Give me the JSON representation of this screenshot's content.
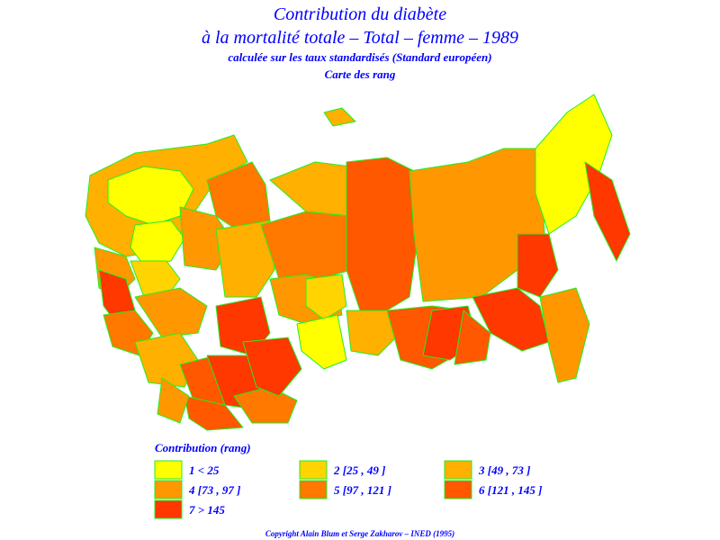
{
  "header": {
    "title": "Contribution du diabète",
    "subtitle": "à la mortalité totale – Total – femme – 1989",
    "note": "calculée sur les taux standardisés (Standard européen)",
    "map_name": "Carte des rang"
  },
  "legend": {
    "title": "Contribution (rang)",
    "items": [
      {
        "label": "1  <  25",
        "color": "#ffff00"
      },
      {
        "label": "2 [25 , 49 ]",
        "color": "#ffd400"
      },
      {
        "label": "3 [49 , 73 ]",
        "color": "#ffb000"
      },
      {
        "label": "4 [73 , 97 ]",
        "color": "#ff9800"
      },
      {
        "label": "5 [97 , 121 ]",
        "color": "#ff7800"
      },
      {
        "label": "6 [121 , 145 ]",
        "color": "#ff5800"
      },
      {
        "label": "7  >  145",
        "color": "#ff3800"
      }
    ]
  },
  "footer": {
    "copyright": "Copyright Alain Blum et Serge Zakharov – INED (1995)"
  }
}
